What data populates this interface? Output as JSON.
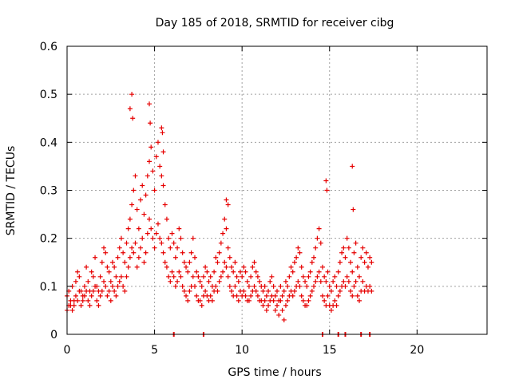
{
  "chart_data": {
    "type": "scatter",
    "title": "Day 185 of 2018, SRMTID for receiver cibg",
    "xlabel": "GPS time / hours",
    "ylabel": "SRMTID / TECUs",
    "xlim": [
      0,
      24
    ],
    "ylim": [
      0,
      0.6
    ],
    "x_ticks": [
      0,
      5,
      10,
      15,
      20
    ],
    "x_tick_labels": [
      "0",
      "5",
      "10",
      "15",
      "20"
    ],
    "y_ticks": [
      0,
      0.1,
      0.2,
      0.3,
      0.4,
      0.5,
      0.6
    ],
    "y_tick_labels": [
      "0",
      "0.1",
      "0.2",
      "0.3",
      "0.4",
      "0.5",
      "0.6"
    ],
    "grid": true,
    "marker": "+",
    "color": "#e60000",
    "series": [
      {
        "name": "SRMTID",
        "x": [
          0.0,
          0.1,
          0.2,
          0.3,
          0.4,
          0.5,
          0.6,
          0.7,
          0.8,
          0.9,
          1.0,
          1.1,
          1.2,
          1.3,
          1.4,
          1.5,
          1.6,
          1.7,
          1.8,
          1.9,
          2.0,
          2.1,
          2.2,
          2.3,
          2.4,
          2.5,
          2.6,
          2.7,
          2.8,
          2.9,
          3.0,
          3.1,
          3.2,
          3.3,
          3.4,
          3.5,
          3.6,
          3.7,
          3.8,
          3.9,
          4.0,
          4.1,
          4.2,
          4.3,
          4.4,
          4.5,
          4.6,
          4.7,
          4.8,
          4.9,
          5.0,
          5.1,
          5.2,
          5.3,
          5.4,
          5.5,
          5.6,
          5.7,
          5.8,
          5.9,
          6.0,
          6.1,
          6.2,
          6.3,
          6.4,
          6.5,
          6.6,
          6.7,
          6.8,
          6.9,
          7.0,
          7.1,
          7.2,
          7.3,
          7.4,
          7.5,
          7.6,
          7.7,
          7.8,
          7.9,
          8.0,
          8.1,
          8.2,
          8.3,
          8.4,
          8.5,
          8.6,
          8.7,
          8.8,
          8.9,
          9.0,
          9.1,
          9.2,
          9.3,
          9.4,
          9.5,
          9.6,
          9.7,
          9.8,
          9.9,
          10.0,
          10.1,
          10.2,
          10.3,
          10.4,
          10.5,
          10.6,
          10.7,
          10.8,
          10.9,
          11.0,
          11.1,
          11.2,
          11.3,
          11.4,
          11.5,
          11.6,
          11.7,
          11.8,
          11.9,
          12.0,
          12.1,
          12.2,
          12.3,
          12.4,
          12.5,
          12.6,
          12.7,
          12.8,
          12.9,
          13.0,
          13.1,
          13.2,
          13.3,
          13.4,
          13.5,
          13.6,
          13.7,
          13.8,
          13.9,
          14.0,
          14.1,
          14.2,
          14.3,
          14.4,
          14.5,
          14.6,
          14.7,
          14.8,
          14.9,
          15.0,
          15.1,
          15.2,
          15.3,
          15.4,
          15.5,
          15.6,
          15.7,
          15.8,
          15.9,
          16.0,
          16.1,
          16.2,
          16.3,
          16.4,
          16.5,
          16.6,
          16.7,
          16.8,
          16.9,
          17.0,
          17.1,
          17.2,
          17.3,
          17.4,
          0.0,
          0.1,
          0.2,
          0.3,
          0.4,
          0.5,
          0.6,
          0.7,
          0.8,
          0.9,
          1.0,
          1.1,
          1.2,
          1.3,
          1.4,
          1.5,
          1.6,
          1.7,
          1.8,
          1.9,
          2.0,
          2.1,
          2.2,
          2.3,
          2.4,
          2.5,
          2.6,
          2.7,
          2.8,
          2.9,
          3.0,
          3.1,
          3.2,
          3.3,
          3.4,
          3.5,
          3.6,
          3.7,
          3.8,
          3.9,
          4.0,
          4.1,
          4.2,
          4.3,
          4.4,
          4.5,
          4.6,
          4.7,
          4.8,
          4.9,
          5.0,
          5.1,
          5.2,
          5.3,
          5.4,
          5.5,
          5.6,
          5.7,
          5.8,
          5.9,
          6.0,
          6.1,
          6.2,
          6.3,
          6.4,
          6.5,
          6.6,
          6.7,
          6.8,
          6.9,
          7.0,
          7.1,
          7.2,
          7.3,
          7.4,
          7.5,
          7.6,
          7.7,
          7.8,
          7.9,
          8.0,
          8.1,
          8.2,
          8.3,
          8.4,
          8.5,
          8.6,
          8.7,
          8.8,
          8.9,
          9.0,
          9.1,
          9.2,
          9.3,
          9.4,
          9.5,
          9.6,
          9.7,
          9.8,
          9.9,
          10.0,
          10.1,
          10.2,
          10.3,
          10.4,
          10.5,
          10.6,
          10.7,
          10.8,
          10.9,
          11.0,
          11.1,
          11.2,
          11.3,
          11.4,
          11.5,
          11.6,
          11.7,
          11.8,
          11.9,
          12.0,
          12.1,
          12.2,
          12.3,
          12.4,
          12.5,
          12.6,
          12.7,
          12.8,
          12.9,
          13.0,
          13.1,
          13.2,
          13.3,
          13.4,
          13.5,
          13.6,
          13.7,
          13.8,
          13.9,
          14.0,
          14.1,
          14.2,
          14.3,
          14.4,
          14.5,
          14.6,
          14.7,
          14.8,
          14.9,
          15.0,
          15.1,
          15.2,
          15.3,
          15.4,
          15.5,
          15.6,
          15.7,
          15.8,
          15.9,
          16.0,
          16.1,
          16.2,
          16.3,
          16.4,
          16.5,
          16.6,
          16.7,
          16.8,
          16.9,
          17.0,
          17.1,
          17.2,
          17.3,
          17.4,
          3.6,
          3.7,
          3.75,
          4.7,
          4.75,
          5.4,
          5.45,
          5.5,
          9.1,
          9.2,
          14.8,
          14.85,
          16.3,
          16.35
        ],
        "y": [
          0.08,
          0.09,
          0.06,
          0.1,
          0.07,
          0.11,
          0.13,
          0.12,
          0.09,
          0.08,
          0.1,
          0.14,
          0.11,
          0.09,
          0.13,
          0.12,
          0.16,
          0.1,
          0.09,
          0.12,
          0.15,
          0.18,
          0.17,
          0.14,
          0.13,
          0.11,
          0.15,
          0.14,
          0.12,
          0.16,
          0.18,
          0.2,
          0.17,
          0.15,
          0.19,
          0.22,
          0.24,
          0.27,
          0.3,
          0.33,
          0.26,
          0.22,
          0.28,
          0.31,
          0.25,
          0.29,
          0.33,
          0.36,
          0.39,
          0.34,
          0.3,
          0.37,
          0.4,
          0.35,
          0.33,
          0.31,
          0.27,
          0.24,
          0.2,
          0.18,
          0.21,
          0.19,
          0.16,
          0.18,
          0.22,
          0.2,
          0.17,
          0.15,
          0.14,
          0.13,
          0.15,
          0.17,
          0.2,
          0.16,
          0.13,
          0.12,
          0.11,
          0.1,
          0.12,
          0.14,
          0.13,
          0.11,
          0.12,
          0.1,
          0.13,
          0.16,
          0.15,
          0.17,
          0.19,
          0.21,
          0.24,
          0.22,
          0.18,
          0.16,
          0.14,
          0.13,
          0.15,
          0.12,
          0.11,
          0.13,
          0.12,
          0.14,
          0.13,
          0.11,
          0.1,
          0.12,
          0.14,
          0.15,
          0.13,
          0.12,
          0.11,
          0.1,
          0.09,
          0.1,
          0.08,
          0.09,
          0.11,
          0.12,
          0.1,
          0.08,
          0.09,
          0.07,
          0.1,
          0.08,
          0.09,
          0.11,
          0.1,
          0.12,
          0.14,
          0.13,
          0.15,
          0.16,
          0.18,
          0.17,
          0.14,
          0.12,
          0.11,
          0.1,
          0.12,
          0.13,
          0.15,
          0.16,
          0.18,
          0.2,
          0.22,
          0.19,
          0.14,
          0.12,
          0.11,
          0.13,
          0.1,
          0.09,
          0.11,
          0.12,
          0.1,
          0.13,
          0.15,
          0.17,
          0.18,
          0.16,
          0.2,
          0.18,
          0.15,
          0.13,
          0.17,
          0.19,
          0.14,
          0.12,
          0.16,
          0.18,
          0.15,
          0.17,
          0.14,
          0.16,
          0.15,
          0.05,
          0.06,
          0.07,
          0.05,
          0.06,
          0.08,
          0.07,
          0.09,
          0.06,
          0.07,
          0.08,
          0.09,
          0.07,
          0.06,
          0.08,
          0.09,
          0.1,
          0.07,
          0.06,
          0.08,
          0.09,
          0.11,
          0.1,
          0.08,
          0.09,
          0.07,
          0.1,
          0.09,
          0.08,
          0.1,
          0.11,
          0.12,
          0.1,
          0.09,
          0.12,
          0.14,
          0.16,
          0.18,
          0.17,
          0.19,
          0.14,
          0.16,
          0.18,
          0.2,
          0.15,
          0.17,
          0.21,
          0.24,
          0.22,
          0.2,
          0.18,
          0.21,
          0.23,
          0.2,
          0.19,
          0.17,
          0.15,
          0.14,
          0.12,
          0.11,
          0.13,
          0.12,
          0.1,
          0.11,
          0.13,
          0.12,
          0.1,
          0.09,
          0.08,
          0.07,
          0.09,
          0.1,
          0.12,
          0.1,
          0.08,
          0.07,
          0.07,
          0.06,
          0.08,
          0.09,
          0.08,
          0.07,
          0.08,
          0.07,
          0.09,
          0.1,
          0.09,
          0.11,
          0.12,
          0.13,
          0.15,
          0.14,
          0.12,
          0.1,
          0.09,
          0.08,
          0.1,
          0.08,
          0.07,
          0.09,
          0.08,
          0.09,
          0.08,
          0.07,
          0.07,
          0.08,
          0.09,
          0.1,
          0.09,
          0.08,
          0.07,
          0.07,
          0.06,
          0.07,
          0.05,
          0.06,
          0.07,
          0.08,
          0.07,
          0.05,
          0.06,
          0.04,
          0.07,
          0.05,
          0.03,
          0.06,
          0.07,
          0.08,
          0.09,
          0.08,
          0.09,
          0.1,
          0.11,
          0.1,
          0.08,
          0.07,
          0.06,
          0.06,
          0.07,
          0.08,
          0.09,
          0.1,
          0.11,
          0.12,
          0.13,
          0.11,
          0.08,
          0.07,
          0.06,
          0.08,
          0.06,
          0.05,
          0.06,
          0.07,
          0.06,
          0.08,
          0.09,
          0.1,
          0.11,
          0.1,
          0.12,
          0.11,
          0.09,
          0.08,
          0.1,
          0.11,
          0.08,
          0.07,
          0.09,
          0.11,
          0.09,
          0.1,
          0.09,
          0.1,
          0.09,
          0.47,
          0.5,
          0.45,
          0.48,
          0.44,
          0.43,
          0.42,
          0.38,
          0.28,
          0.27,
          0.32,
          0.3,
          0.35,
          0.26
        ],
        "marker_count": 364
      }
    ],
    "rug_x": [
      6.1,
      7.8,
      14.6,
      15.5,
      15.9,
      16.8,
      17.3
    ],
    "rug_y": 0
  }
}
